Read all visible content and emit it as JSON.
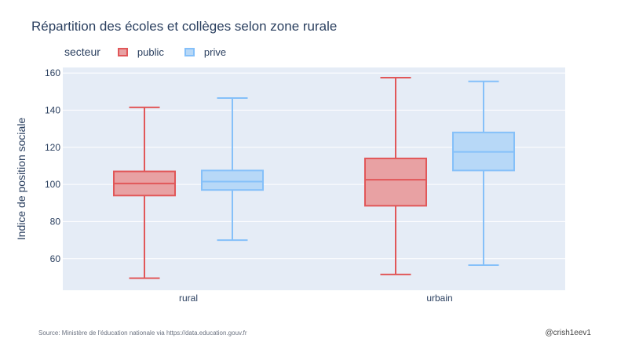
{
  "chart_data": {
    "type": "box",
    "title": "Répartition des écoles et collèges selon zone rurale",
    "legend_title": "secteur",
    "legend_position": "top-left",
    "ylabel": "Indice de position sociale",
    "xlabel": "",
    "ylim": [
      43,
      163
    ],
    "yticks": [
      60,
      80,
      100,
      120,
      140,
      160
    ],
    "categories": [
      "rural",
      "urbain"
    ],
    "grid": true,
    "series": [
      {
        "name": "public",
        "color": "#e15759",
        "fill": "#e8a1a3",
        "boxes": [
          {
            "category": "rural",
            "min": 49.5,
            "q1": 94,
            "median": 100.5,
            "q3": 107,
            "max": 141.5
          },
          {
            "category": "urbain",
            "min": 51.5,
            "q1": 88.5,
            "median": 102.5,
            "q3": 114,
            "max": 157.5
          }
        ]
      },
      {
        "name": "prive",
        "color": "#85c0f9",
        "fill": "#b7d8f7",
        "boxes": [
          {
            "category": "rural",
            "min": 70,
            "q1": 97,
            "median": 101.5,
            "q3": 107.5,
            "max": 146.5
          },
          {
            "category": "urbain",
            "min": 56.5,
            "q1": 107.5,
            "median": 117.5,
            "q3": 128,
            "max": 155.5
          }
        ]
      }
    ]
  },
  "footer": {
    "source": "Source: Ministère de l'éducation nationale via https://data.education.gouv.fr",
    "credit": "@crish1eev1"
  }
}
